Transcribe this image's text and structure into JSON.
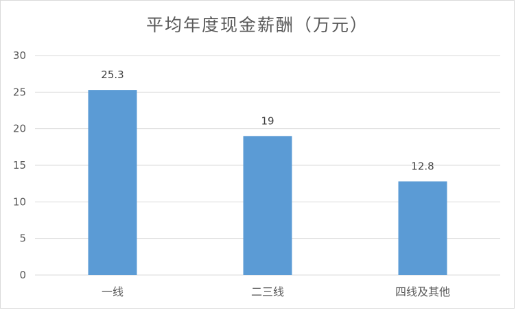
{
  "chart_data": {
    "type": "bar",
    "title": "平均年度现金薪酬（万元）",
    "categories": [
      "一线",
      "二三线",
      "四线及其他"
    ],
    "values": [
      25.3,
      19,
      12.8
    ],
    "data_labels": [
      "25.3",
      "19",
      "12.8"
    ],
    "y_ticks": [
      "0",
      "5",
      "10",
      "15",
      "20",
      "25",
      "30"
    ],
    "ylim": [
      0,
      30
    ],
    "grid": true,
    "legend": "none",
    "bar_color": "#5b9bd5",
    "grid_color": "#d9d9d9"
  }
}
